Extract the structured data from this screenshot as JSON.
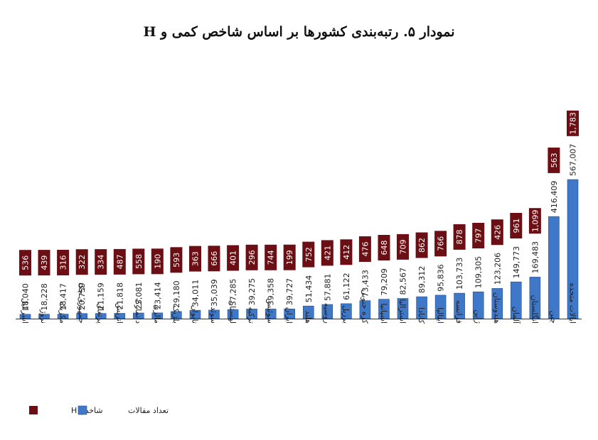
{
  "chart_data": {
    "type": "bar",
    "title": "نمودار ۵. رتبه‌بندی کشورها بر اساس شاخص کمی و H",
    "categories": [
      "اسرائیل",
      "نروژ",
      "مکزیک",
      "جمهوری چک",
      "پرتغال",
      "اتریش",
      "دانمارک",
      "مالزی",
      "بلژیک",
      "تایوان",
      "سوئد",
      "لهستان",
      "ترکیه",
      "سوئیس",
      "ایران",
      "هلند",
      "روسیه",
      "برزیل",
      "کره جنوبی",
      "اسپانیا",
      "استرالیا",
      "کانادا",
      "ایتالیا",
      "فرانسه",
      "ژاپن",
      "هندوستان",
      "آلمان",
      "انگلستان",
      "چین",
      "ایالات متحده"
    ],
    "series": [
      {
        "name": "تعداد مقالات",
        "color": "#3f78c9",
        "values": [
          18040,
          18228,
          18417,
          20759,
          21159,
          21818,
          23081,
          23414,
          29180,
          34011,
          35039,
          37285,
          39275,
          39358,
          39727,
          51434,
          57881,
          61122,
          73433,
          79209,
          82567,
          89312,
          95836,
          103733,
          109305,
          123206,
          149773,
          169483,
          416409,
          567007
        ],
        "labels": [
          "18,040",
          "18,228",
          "18,417",
          "20,759",
          "21,159",
          "21,818",
          "23,081",
          "23,414",
          "29,180",
          "34,011",
          "35,039",
          "37,285",
          "39,275",
          "39,358",
          "39,727",
          "51,434",
          "57,881",
          "61,122",
          "73,433",
          "79,209",
          "82,567",
          "89,312",
          "95,836",
          "103,733",
          "109,305",
          "123,206",
          "149,773",
          "169,483",
          "416,409",
          "567,007"
        ]
      },
      {
        "name": "شاخص H",
        "color": "#6b0f14",
        "values": [
          536,
          439,
          316,
          322,
          334,
          487,
          558,
          190,
          593,
          363,
          666,
          401,
          296,
          744,
          199,
          752,
          421,
          412,
          476,
          648,
          709,
          862,
          766,
          878,
          797,
          426,
          961,
          1099,
          563,
          1783
        ],
        "labels": [
          "536",
          "439",
          "316",
          "322",
          "334",
          "487",
          "558",
          "190",
          "593",
          "363",
          "666",
          "401",
          "296",
          "744",
          "199",
          "752",
          "421",
          "412",
          "476",
          "648",
          "709",
          "862",
          "766",
          "878",
          "797",
          "426",
          "961",
          "1,099",
          "563",
          "1,783"
        ]
      }
    ],
    "ylim": [
      0,
      567007
    ],
    "grid": false,
    "legend_position": "bottom-left"
  }
}
